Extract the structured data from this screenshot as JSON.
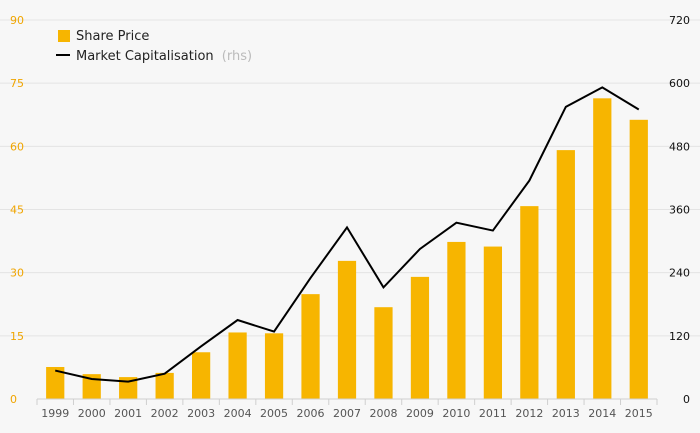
{
  "chart_data": {
    "type": "bar",
    "categories": [
      "1999",
      "2000",
      "2001",
      "2002",
      "2003",
      "2004",
      "2005",
      "2006",
      "2007",
      "2008",
      "2009",
      "2010",
      "2011",
      "2012",
      "2013",
      "2014",
      "2015"
    ],
    "series": [
      {
        "name": "Share Price",
        "type": "bar",
        "axis": "left",
        "color": "#f7b500",
        "values": [
          7.6,
          5.9,
          5.2,
          6.2,
          11.1,
          15.8,
          15.6,
          24.9,
          32.8,
          21.8,
          29.0,
          37.3,
          36.2,
          45.8,
          59.1,
          71.4,
          66.3
        ]
      },
      {
        "name": "Market Capitalisation",
        "name_suffix": "(rhs)",
        "type": "line",
        "axis": "right",
        "color": "#000000",
        "values": [
          54,
          38,
          33,
          48,
          100,
          150,
          128,
          230,
          326,
          212,
          285,
          335,
          320,
          415,
          555,
          592,
          550
        ]
      }
    ],
    "yleft": {
      "min": 0,
      "max": 90,
      "ticks": [
        0,
        15,
        30,
        45,
        60,
        75,
        90
      ],
      "color": "#f0a500"
    },
    "yright": {
      "min": 0,
      "max": 720,
      "ticks": [
        0,
        120,
        240,
        360,
        480,
        600,
        720
      ],
      "color": "#111111"
    },
    "grid": true,
    "legend": "top-left"
  }
}
